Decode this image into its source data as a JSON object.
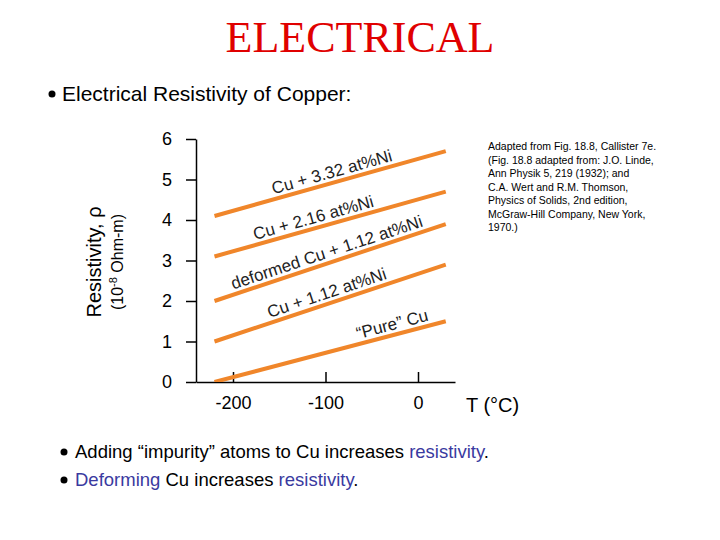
{
  "slide": {
    "title": "ELECTRICAL",
    "heading": "Electrical Resistivity of Copper:",
    "caption": [
      "Adapted from Fig. 18.8, Callister 7e.",
      "(Fig. 18.8 adapted from: J.O. Linde,",
      "Ann Physik 5, 219 (1932); and",
      "C.A. Wert and R.M. Thomson,",
      "Physics of Solids, 2nd edition,",
      "McGraw-Hill Company, New York,",
      "1970.)"
    ],
    "bullets": [
      {
        "segments": [
          {
            "text": "Adding “impurity” atoms to Cu increases ",
            "emphasis": false
          },
          {
            "text": "resistivity",
            "emphasis": true
          },
          {
            "text": ".",
            "emphasis": false
          }
        ]
      },
      {
        "segments": [
          {
            "text": "Deforming",
            "emphasis": true
          },
          {
            "text": " Cu increases ",
            "emphasis": false
          },
          {
            "text": "resistivity",
            "emphasis": true
          },
          {
            "text": ".",
            "emphasis": false
          }
        ]
      }
    ]
  },
  "chart_data": {
    "type": "line",
    "x_label": "T (°C)",
    "y_label": "Resistivity, ρ",
    "y_units": {
      "base": "(10",
      "exponent": "-8",
      "rest": " Ohm-m)"
    },
    "x": [
      -220,
      30
    ],
    "series": [
      {
        "name": "Cu + 3.32 at%Ni",
        "color": "#f0862a",
        "values": [
          4.1,
          5.7
        ]
      },
      {
        "name": "Cu + 2.16 at%Ni",
        "color": "#f0862a",
        "values": [
          3.1,
          4.7
        ]
      },
      {
        "name": "deformed Cu + 1.12 at%Ni",
        "color": "#f0862a",
        "values": [
          2.0,
          3.9
        ]
      },
      {
        "name": "Cu + 1.12 at%Ni",
        "color": "#f0862a",
        "values": [
          1.0,
          2.9
        ]
      },
      {
        "name": "“Pure” Cu",
        "color": "#f0862a",
        "values": [
          0.0,
          1.5
        ]
      }
    ],
    "xlim": [
      -240,
      40
    ],
    "xticks": [
      -200,
      -100,
      0
    ],
    "ylim": [
      0,
      6
    ],
    "yticks": [
      0,
      1,
      2,
      3,
      4,
      5,
      6
    ],
    "grid": false
  }
}
